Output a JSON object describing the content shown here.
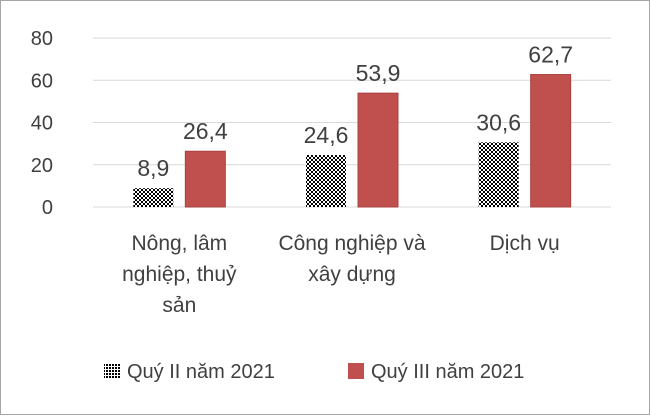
{
  "chart_data": {
    "type": "bar",
    "categories": [
      [
        "Nông, lâm",
        "nghiệp, thuỷ",
        "sản"
      ],
      [
        "Công nghiệp và",
        "xây dựng"
      ],
      [
        "Dịch vụ"
      ]
    ],
    "series": [
      {
        "name": "Quý II năm 2021",
        "values": [
          8.9,
          24.6,
          30.6
        ],
        "labels": [
          "8,9",
          "24,6",
          "30,6"
        ],
        "fill": "dotted-black"
      },
      {
        "name": "Quý III năm 2021",
        "values": [
          26.4,
          53.9,
          62.7
        ],
        "labels": [
          "26,4",
          "53,9",
          "62,7"
        ],
        "color": "#c0504d"
      }
    ],
    "yticks": [
      "0",
      "20",
      "40",
      "60",
      "80"
    ],
    "ylim": [
      0,
      80
    ],
    "grid": true,
    "legend_position": "bottom",
    "colors": {
      "series2": "#c0504d",
      "series2_stroke": "#a8423f",
      "text": "#404040",
      "grid": "#d9d9d9"
    }
  }
}
